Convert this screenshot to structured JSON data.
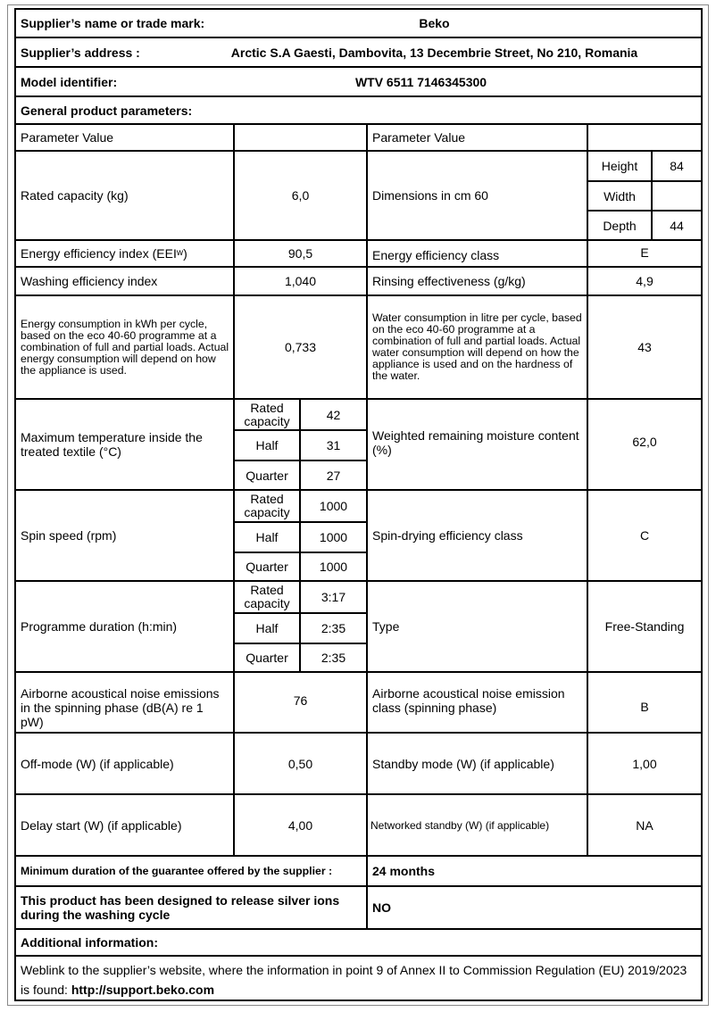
{
  "header": {
    "supplier_label": "Supplier’s name or trade mark:",
    "supplier_value": "Beko",
    "address_label": "Supplier’s address :",
    "address_value": "Arctic S.A  Gaesti, Dambovita, 13 Decembrie Street, No 210, Romania",
    "model_label": "Model identifier:",
    "model_value": "WTV 6511 7146345300",
    "general_label": "General product parameters:"
  },
  "params": {
    "col_header_left": "Parameter Value",
    "col_header_right": "Parameter Value",
    "rated_capacity_label": "Rated capacity (kg)",
    "rated_capacity_value": "6,0",
    "dimensions_label": "Dimensions in cm 60",
    "height_label": "Height",
    "height_value": "84",
    "width_label": "Width",
    "width_value": "",
    "depth_label": "Depth",
    "depth_value": "44",
    "eei_label": "Energy efficiency index (EEI",
    "eei_sub": "w",
    "eei_label_end": " )",
    "eei_value": "90,5",
    "energy_class_label": "Energy efficiency class",
    "energy_class_value": "E",
    "washing_index_label": "Washing efficiency index",
    "washing_index_value": "1,040",
    "rinsing_label": "Rinsing effectiveness (g/kg)",
    "rinsing_value": "4,9",
    "energy_consumption_label": "Energy consumption in kWh per cycle, based on the eco 40-60 programme at a combination of full and partial loads. Actual energy consumption will depend on how the appliance is used.",
    "energy_consumption_value": "0,733",
    "water_consumption_label": "Water consumption in litre per cycle, based on the eco 40-60 programme at a combination of full and partial loads. Actual water consumption will depend on how the appliance is used and on the hardness of the water.",
    "water_consumption_value": "43",
    "max_temp_label": "Maximum temperature inside the treated textile (°C)",
    "max_temp": [
      {
        "label": "Rated capacity",
        "value": "42"
      },
      {
        "label": "Half",
        "value": "31"
      },
      {
        "label": "Quarter",
        "value": "27"
      }
    ],
    "moisture_label": "Weighted remaining moisture content (%)",
    "moisture_value": "62,0",
    "spin_label": "Spin speed (rpm)",
    "spin": [
      {
        "label": "Rated capacity",
        "value": "1000"
      },
      {
        "label": "Half",
        "value": "1000"
      },
      {
        "label": "Quarter",
        "value": "1000"
      }
    ],
    "spin_class_label": "Spin-drying efficiency class",
    "spin_class_value": "C",
    "duration_label": "Programme duration (h:min)",
    "duration": [
      {
        "label": "Rated capacity",
        "value": "3:17"
      },
      {
        "label": "Half",
        "value": "2:35"
      },
      {
        "label": "Quarter",
        "value": "2:35"
      }
    ],
    "type_label": "Type",
    "type_value": "Free-Standing",
    "noise_label": "Airborne acoustical noise emissions in the spinning phase (dB(A) re 1 pW)",
    "noise_value": "76",
    "noise_class_label": "Airborne acoustical noise emission class (spinning phase)",
    "noise_class_value": "B",
    "off_mode_label": "Off-mode (W) (if applicable)",
    "off_mode_value": "0,50",
    "standby_label": "Standby mode (W) (if applicable)",
    "standby_value": "1,00",
    "delay_label": "Delay start (W) (if applicable)",
    "delay_value": "4,00",
    "networked_label": "Networked standby (W) (if applicable)",
    "networked_value": "NA"
  },
  "footer": {
    "guarantee_label": "Minimum duration of the guarantee offered by the supplier :",
    "guarantee_value": "24  months",
    "silver_label": "This product has been designed to release silver ions during the washing cycle",
    "silver_value": "NO",
    "additional_label": "Additional information:",
    "weblink_text": "Weblink to the supplier’s website, where the information in point 9 of Annex II to Commission Regulation (EU) 2019/2023 is found:",
    "weblink_url": "http://support.beko.com"
  }
}
